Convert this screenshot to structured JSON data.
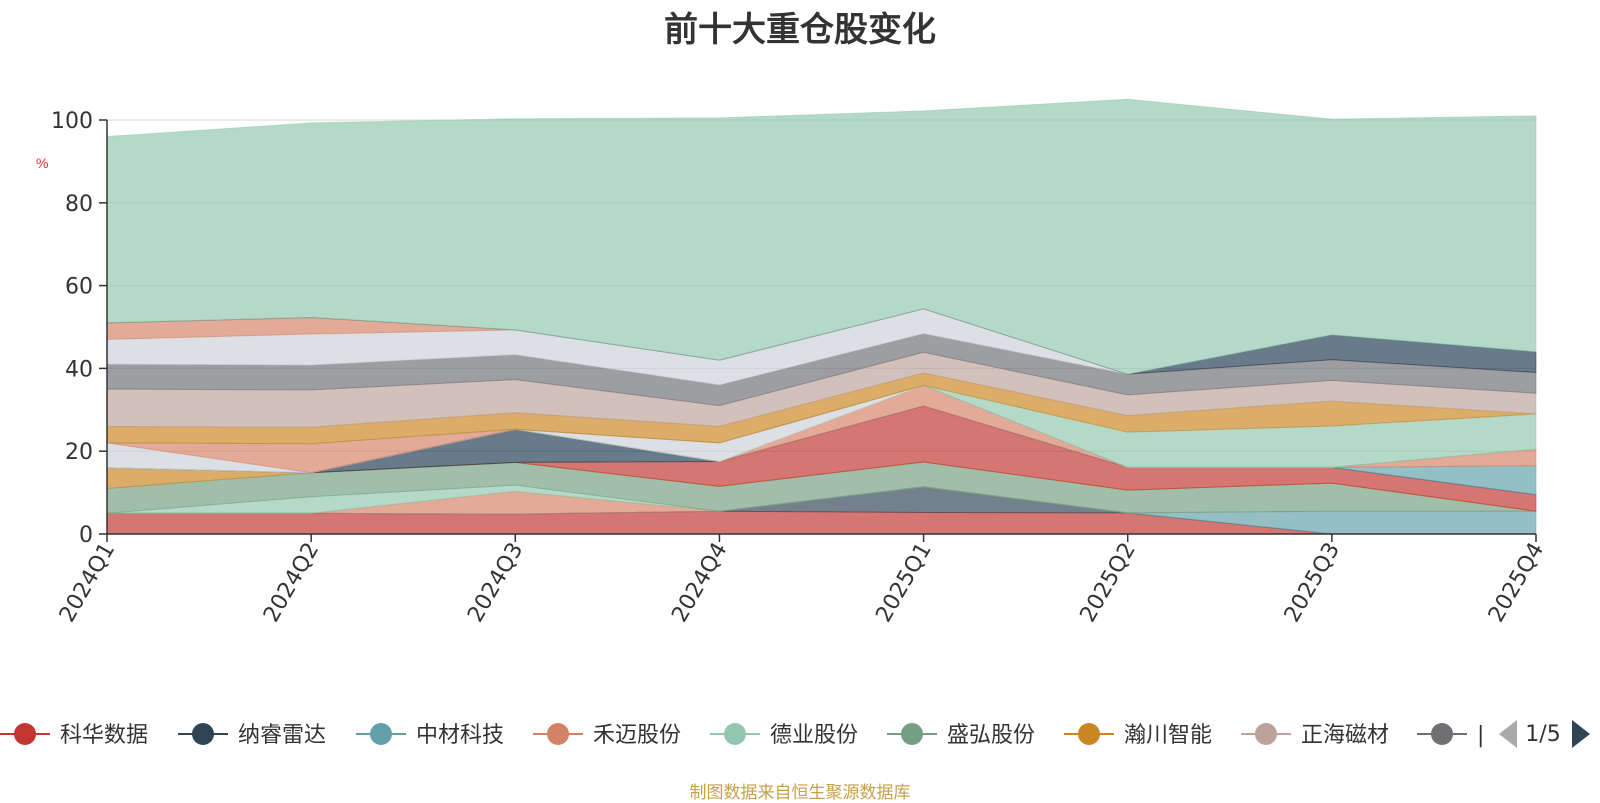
{
  "chart_data": {
    "type": "area",
    "title": "前十大重仓股变化",
    "ylabel": "%",
    "ylim": [
      0,
      100
    ],
    "y_ticks": [
      0,
      20,
      40,
      60,
      80,
      100
    ],
    "stacked": true,
    "grid": true,
    "legend_position": "bottom",
    "categories": [
      "2024Q1",
      "2024Q2",
      "2024Q3",
      "2024Q4",
      "2025Q1",
      "2025Q2",
      "2025Q3",
      "2025Q4"
    ],
    "series": [
      {
        "name": "科华数据",
        "color": "#c23531",
        "values": [
          5.0,
          5.0,
          4.8,
          5.5,
          5.2,
          5.1,
          0.0,
          0.0
        ]
      },
      {
        "name": "纳睿雷达",
        "color": "#2f4554",
        "values": [
          0.0,
          0.0,
          0.0,
          0.0,
          6.2,
          0.0,
          0.0,
          0.0
        ]
      },
      {
        "name": "中材科技",
        "color": "#61a0a8",
        "values": [
          0.0,
          0.0,
          0.0,
          0.0,
          0.0,
          0.0,
          5.5,
          5.5
        ]
      },
      {
        "name": "禾迈股份",
        "color": "#d48265",
        "values": [
          0.0,
          0.0,
          5.5,
          0.0,
          0.0,
          0.0,
          0.0,
          0.0
        ]
      },
      {
        "name": "德业股份",
        "color": "#91c7ae",
        "values": [
          0.0,
          4.0,
          1.5,
          0.0,
          0.0,
          0.0,
          0.0,
          0.0
        ]
      },
      {
        "name": "盛弘股份",
        "color": "#749f83",
        "values": [
          6.0,
          5.8,
          5.5,
          6.0,
          6.0,
          5.5,
          6.8,
          0.0
        ]
      },
      {
        "name": "瀚川智能",
        "color": "#ca8622",
        "values": [
          5.0,
          0.0,
          0.0,
          0.0,
          0.0,
          0.0,
          0.0,
          0.0
        ]
      }
    ],
    "other_layers": [
      {
        "color": "#c23531",
        "values": [
          0.0,
          0.0,
          0.0,
          6.0,
          13.5,
          5.5,
          3.8,
          4.0
        ]
      },
      {
        "color": "#1f3c52",
        "values": [
          0.0,
          0.0,
          8.0,
          0.0,
          0.0,
          0.0,
          0.0,
          0.0
        ]
      },
      {
        "color": "#61a0a8",
        "values": [
          0.0,
          0.0,
          0.0,
          0.0,
          0.0,
          0.0,
          0.0,
          7.0
        ]
      },
      {
        "color": "#d48265",
        "values": [
          0.0,
          0.0,
          0.0,
          0.0,
          5.0,
          0.0,
          0.0,
          4.0
        ]
      },
      {
        "color": "#91c7ae",
        "values": [
          0.0,
          0.0,
          0.0,
          0.0,
          0.0,
          0.0,
          0.0,
          0.0
        ]
      },
      {
        "color": "#cbd1d9",
        "values": [
          6.0,
          0.0,
          0.0,
          4.5,
          0.0,
          0.0,
          0.0,
          0.0
        ]
      },
      {
        "color": "#d48265",
        "values": [
          0.0,
          7.0,
          0.0,
          0.0,
          0.0,
          0.0,
          0.0,
          0.0
        ]
      },
      {
        "color": "#91c7ae",
        "values": [
          0.0,
          0.0,
          0.0,
          0.0,
          0.0,
          8.5,
          10.0,
          8.5
        ]
      },
      {
        "color": "#ca8622",
        "values": [
          4.0,
          4.0,
          4.0,
          4.0,
          3.0,
          4.0,
          6.0,
          0.0
        ]
      },
      {
        "color": "#bda29a",
        "values": [
          9.0,
          9.0,
          8.0,
          5.0,
          5.0,
          5.0,
          5.0,
          5.0
        ]
      },
      {
        "color": "#6e7074",
        "values": [
          6.0,
          6.0,
          6.0,
          5.0,
          4.5,
          5.0,
          5.0,
          5.0
        ]
      },
      {
        "color": "#cbd1d9",
        "values": [
          6.0,
          7.5,
          6.0,
          6.0,
          6.0,
          0.0,
          0.0,
          0.0
        ]
      },
      {
        "color": "#d48265",
        "values": [
          4.0,
          4.0,
          0.0,
          0.0,
          0.0,
          0.0,
          0.0,
          0.0
        ]
      },
      {
        "color": "#1f3c52",
        "values": [
          0.0,
          0.0,
          0.0,
          0.0,
          0.0,
          0.0,
          6.0,
          5.0
        ]
      },
      {
        "color": "#91c7ae",
        "values": [
          45.0,
          47.0,
          51.0,
          58.5,
          47.8,
          66.4,
          52.1,
          57.0
        ]
      }
    ],
    "legend_visible": [
      "科华数据",
      "纳睿雷达",
      "中材科技",
      "禾迈股份",
      "德业股份",
      "盛弘股份",
      "瀚川智能",
      "正海磁材",
      "|"
    ],
    "legend_colors": [
      "#c23531",
      "#2f4554",
      "#61a0a8",
      "#d48265",
      "#91c7ae",
      "#749f83",
      "#ca8622",
      "#bda29a",
      "#6e7074"
    ],
    "legend_page": "1/5"
  },
  "source_note": "制图数据来自恒生聚源数据库"
}
